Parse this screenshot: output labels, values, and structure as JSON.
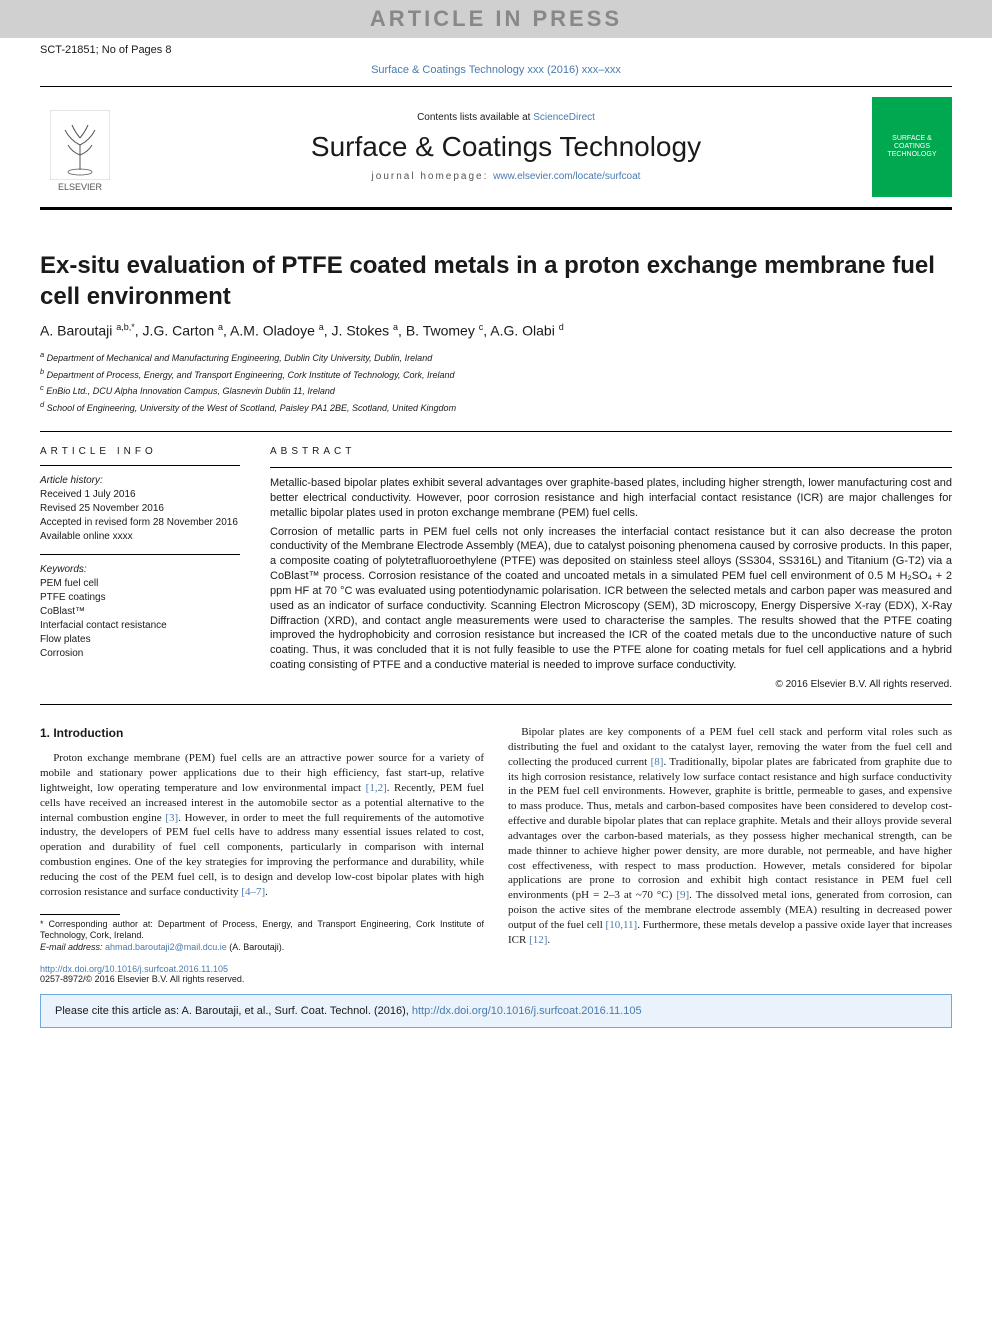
{
  "header": {
    "banner": "ARTICLE IN PRESS",
    "doc_id": "SCT-21851; No of Pages 8",
    "journal_ref": "Surface & Coatings Technology xxx (2016) xxx–xxx",
    "contents_prefix": "Contents lists available at ",
    "contents_link": "ScienceDirect",
    "journal_title": "Surface & Coatings Technology",
    "homepage_prefix": "journal homepage: ",
    "homepage_url": "www.elsevier.com/locate/surfcoat",
    "publisher": "ELSEVIER",
    "cover_text": "SURFACE & COATINGS TECHNOLOGY"
  },
  "article": {
    "title": "Ex-situ evaluation of PTFE coated metals in a proton exchange membrane fuel cell environment",
    "authors_html": "A. Baroutaji <sup>a,b,*</sup>, J.G. Carton <sup>a</sup>, A.M. Oladoye <sup>a</sup>, J. Stokes <sup>a</sup>, B. Twomey <sup>c</sup>, A.G. Olabi <sup>d</sup>",
    "affiliations": [
      "a Department of Mechanical and Manufacturing Engineering, Dublin City University, Dublin, Ireland",
      "b Department of Process, Energy, and Transport Engineering, Cork Institute of Technology, Cork, Ireland",
      "c EnBio Ltd., DCU Alpha Innovation Campus, Glasnevin Dublin 11, Ireland",
      "d School of Engineering, University of the West of Scotland, Paisley PA1 2BE, Scotland, United Kingdom"
    ]
  },
  "info": {
    "heading": "ARTICLE INFO",
    "history_label": "Article history:",
    "history": [
      "Received 1 July 2016",
      "Revised 25 November 2016",
      "Accepted in revised form 28 November 2016",
      "Available online xxxx"
    ],
    "keywords_label": "Keywords:",
    "keywords": [
      "PEM fuel cell",
      "PTFE coatings",
      "CoBlast™",
      "Interfacial contact resistance",
      "Flow plates",
      "Corrosion"
    ]
  },
  "abstract": {
    "heading": "ABSTRACT",
    "p1": "Metallic-based bipolar plates exhibit several advantages over graphite-based plates, including higher strength, lower manufacturing cost and better electrical conductivity. However, poor corrosion resistance and high interfacial contact resistance (ICR) are major challenges for metallic bipolar plates used in proton exchange membrane (PEM) fuel cells.",
    "p2": "Corrosion of metallic parts in PEM fuel cells not only increases the interfacial contact resistance but it can also decrease the proton conductivity of the Membrane Electrode Assembly (MEA), due to catalyst poisoning phenomena caused by corrosive products. In this paper, a composite coating of polytetrafluoroethylene (PTFE) was deposited on stainless steel alloys (SS304, SS316L) and Titanium (G-T2) via a CoBlast™ process. Corrosion resistance of the coated and uncoated metals in a simulated PEM fuel cell environment of 0.5 M H₂SO₄ + 2 ppm HF at 70 °C was evaluated using potentiodynamic polarisation. ICR between the selected metals and carbon paper was measured and used as an indicator of surface conductivity. Scanning Electron Microscopy (SEM), 3D microscopy, Energy Dispersive X-ray (EDX), X-Ray Diffraction (XRD), and contact angle measurements were used to characterise the samples. The results showed that the PTFE coating improved the hydrophobicity and corrosion resistance but increased the ICR of the coated metals due to the unconductive nature of such coating. Thus, it was concluded that it is not fully feasible to use the PTFE alone for coating metals for fuel cell applications and a hybrid coating consisting of PTFE and a conductive material is needed to improve surface conductivity.",
    "rights": "© 2016 Elsevier B.V. All rights reserved."
  },
  "body": {
    "intro_heading": "1. Introduction",
    "col1_p1_a": "Proton exchange membrane (PEM) fuel cells are an attractive power source for a variety of mobile and stationary power applications due to their high efficiency, fast start-up, relative lightweight, low operating temperature and low environmental impact ",
    "ref12": "[1,2]",
    "col1_p1_b": ". Recently, PEM fuel cells have received an increased interest in the automobile sector as a potential alternative to the internal combustion engine ",
    "ref3": "[3]",
    "col1_p1_c": ". However, in order to meet the full requirements of the automotive industry, the developers of PEM fuel cells have to address many essential issues related to cost, operation and durability of fuel cell components, particularly in comparison with internal combustion engines. One of the key strategies for improving the performance and durability, while reducing the cost of the PEM fuel cell, is to design and develop low-cost bipolar plates with high corrosion resistance and surface conductivity ",
    "ref47": "[4–7]",
    "col1_p1_d": ".",
    "col2_p1_a": "Bipolar plates are key components of a PEM fuel cell stack and perform vital roles such as distributing the fuel and oxidant to the catalyst layer, removing the water from the fuel cell and collecting the produced current ",
    "ref8": "[8]",
    "col2_p1_b": ". Traditionally, bipolar plates are fabricated from graphite due to its high corrosion resistance, relatively low surface contact resistance and high surface conductivity in the PEM fuel cell environments. However, graphite is brittle, permeable to gases, and expensive to mass produce. Thus, metals and carbon-based composites have been considered to develop cost-effective and durable bipolar plates that can replace graphite. Metals and their alloys provide several advantages over the carbon-based materials, as they possess higher mechanical strength, can be made thinner to achieve higher power density, are more durable, not permeable, and have higher cost effectiveness, with respect to mass production. However, metals considered for bipolar applications are prone to corrosion and exhibit high contact resistance in PEM fuel cell environments (pH = 2–3 at ~70 °C) ",
    "ref9": "[9]",
    "col2_p1_c": ". The dissolved metal ions, generated from corrosion, can poison the active sites of the membrane electrode assembly (MEA) resulting in decreased power output of the fuel cell ",
    "ref1011": "[10,11]",
    "col2_p1_d": ". Furthermore, these metals develop a passive oxide layer that increases ICR ",
    "ref12b": "[12]",
    "col2_p1_e": "."
  },
  "footnotes": {
    "corr": "* Corresponding author at: Department of Process, Energy, and Transport Engineering, Cork Institute of Technology, Cork, Ireland.",
    "email_label": "E-mail address: ",
    "email": "ahmad.baroutaji2@mail.dcu.ie",
    "email_suffix": " (A. Baroutaji)."
  },
  "doi": {
    "url": "http://dx.doi.org/10.1016/j.surfcoat.2016.11.105",
    "issn": "0257-8972/© 2016 Elsevier B.V. All rights reserved."
  },
  "citebox": {
    "prefix": "Please cite this article as: A. Baroutaji, et al., Surf. Coat. Technol. (2016), ",
    "url": "http://dx.doi.org/10.1016/j.surfcoat.2016.11.105"
  },
  "colors": {
    "link": "#4a7baf",
    "banner_bg": "#d0d0d0",
    "banner_fg": "#888888",
    "cover_bg": "#00a84f",
    "citebox_bg": "#eaf2fb",
    "citebox_border": "#6fa8e0"
  }
}
